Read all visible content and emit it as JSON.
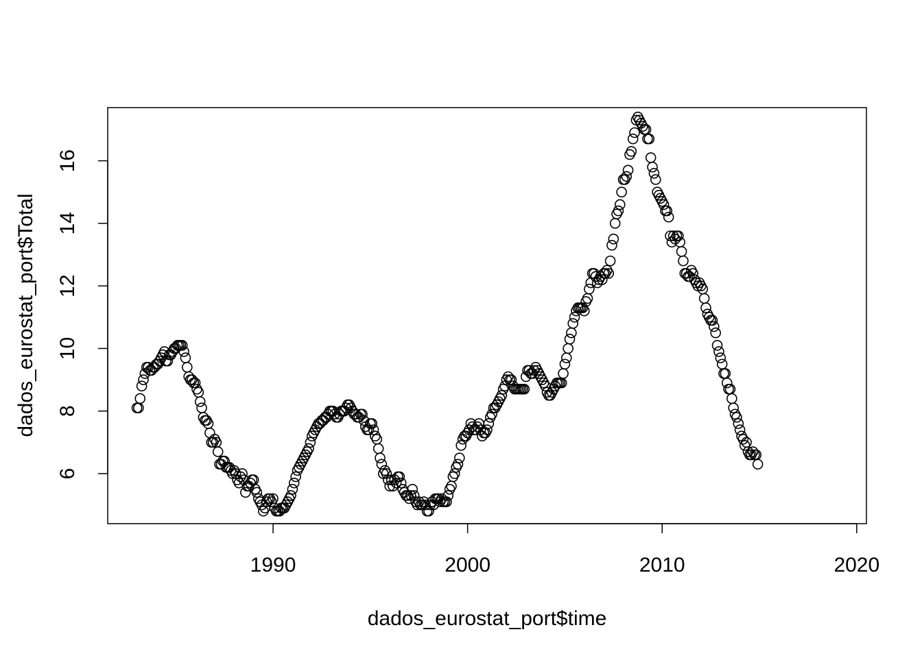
{
  "chart_data": {
    "type": "scatter",
    "title": "",
    "xlabel": "dados_eurostat_port$time",
    "ylabel": "dados_eurostat_port$Total",
    "xlim": [
      1981.5,
      2020.5
    ],
    "ylim": [
      4.4,
      17.7
    ],
    "x_ticks": [
      1990,
      2000,
      2010,
      2020
    ],
    "x_tick_labels": [
      "1990",
      "2000",
      "2010",
      "2020"
    ],
    "y_ticks": [
      6,
      8,
      10,
      12,
      14,
      16
    ],
    "y_tick_labels": [
      "6",
      "8",
      "10",
      "12",
      "14",
      "16"
    ],
    "grid": false,
    "legend": "none",
    "point_style": "open-circle",
    "series": [
      {
        "x_start": 1983.0,
        "x_step": 0.08333,
        "values": [
          8.1,
          8.1,
          8.4,
          8.8,
          9.0,
          9.2,
          9.4,
          9.4,
          9.3,
          9.3,
          9.4,
          9.4,
          9.5,
          9.5,
          9.6,
          9.7,
          9.8,
          9.9,
          9.6,
          9.6,
          9.8,
          9.8,
          9.9,
          10.0,
          10.0,
          10.1,
          10.1,
          10.1,
          10.1,
          9.9,
          9.7,
          9.4,
          9.1,
          9.0,
          9.0,
          8.9,
          8.9,
          8.7,
          8.6,
          8.3,
          8.1,
          7.8,
          7.7,
          7.7,
          7.6,
          7.3,
          7.0,
          7.0,
          7.1,
          7.0,
          6.7,
          6.3,
          6.3,
          6.4,
          6.4,
          6.2,
          6.2,
          6.2,
          6.1,
          6.0,
          6.1,
          6.0,
          5.8,
          5.7,
          5.9,
          6.0,
          5.8,
          5.4,
          5.6,
          5.6,
          5.7,
          5.8,
          5.8,
          5.5,
          5.4,
          5.2,
          5.1,
          5.0,
          4.8,
          4.9,
          5.1,
          5.2,
          5.2,
          5.1,
          5.2,
          4.9,
          4.8,
          4.8,
          4.8,
          4.9,
          4.9,
          4.9,
          5.0,
          5.1,
          5.2,
          5.3,
          5.5,
          5.7,
          5.9,
          6.1,
          6.2,
          6.3,
          6.4,
          6.5,
          6.6,
          6.7,
          6.8,
          7.0,
          7.2,
          7.3,
          7.4,
          7.5,
          7.6,
          7.6,
          7.7,
          7.7,
          7.8,
          7.8,
          7.9,
          8.0,
          8.0,
          8.0,
          7.9,
          7.8,
          7.8,
          7.9,
          8.0,
          8.0,
          8.0,
          8.1,
          8.2,
          8.2,
          8.1,
          8.0,
          7.9,
          7.9,
          7.8,
          7.8,
          7.9,
          7.9,
          7.7,
          7.5,
          7.4,
          7.4,
          7.6,
          7.6,
          7.4,
          7.2,
          7.1,
          6.8,
          6.5,
          6.3,
          6.0,
          6.1,
          6.0,
          5.8,
          5.6,
          5.8,
          5.6,
          5.8,
          5.7,
          5.9,
          5.9,
          5.7,
          5.5,
          5.4,
          5.3,
          5.3,
          5.2,
          5.3,
          5.5,
          5.3,
          5.1,
          5.0,
          5.1,
          5.0,
          5.0,
          5.1,
          5.0,
          4.8,
          4.8,
          5.0,
          5.1,
          5.0,
          5.2,
          5.2,
          5.2,
          5.1,
          5.2,
          5.1,
          5.1,
          5.1,
          5.3,
          5.5,
          5.6,
          5.9,
          6.0,
          6.2,
          6.3,
          6.5,
          6.9,
          7.1,
          7.2,
          7.2,
          7.3,
          7.4,
          7.6,
          7.5,
          7.4,
          7.4,
          7.5,
          7.6,
          7.4,
          7.2,
          7.3,
          7.3,
          7.4,
          7.6,
          7.8,
          7.9,
          8.1,
          8.1,
          8.2,
          8.3,
          8.4,
          8.5,
          8.7,
          8.8,
          9.0,
          9.1,
          9.0,
          9.0,
          8.8,
          8.7,
          8.7,
          8.7,
          8.7,
          8.7,
          8.7,
          8.7,
          9.1,
          9.3,
          9.3,
          9.2,
          9.2,
          9.3,
          9.4,
          9.3,
          9.2,
          9.1,
          9.0,
          8.9,
          8.8,
          8.6,
          8.5,
          8.5,
          8.6,
          8.7,
          8.8,
          8.9,
          8.9,
          8.9,
          8.9,
          9.2,
          9.5,
          9.7,
          10.0,
          10.3,
          10.5,
          10.8,
          11.0,
          11.2,
          11.3,
          11.3,
          11.3,
          11.3,
          11.2,
          11.5,
          11.6,
          11.9,
          12.1,
          12.4,
          12.4,
          12.3,
          12.1,
          12.2,
          12.3,
          12.2,
          12.4,
          12.4,
          12.5,
          12.4,
          12.8,
          13.3,
          13.5,
          14.0,
          14.3,
          14.4,
          14.6,
          15.0,
          15.4,
          15.4,
          15.5,
          15.7,
          16.2,
          16.3,
          16.7,
          16.9,
          17.3,
          17.4,
          17.3,
          17.2,
          17.1,
          17.0,
          17.0,
          16.7,
          16.7,
          16.1,
          15.8,
          15.6,
          15.4,
          15.0,
          14.9,
          14.8,
          14.7,
          14.6,
          14.4,
          14.4,
          14.2,
          13.6,
          13.4,
          13.6,
          13.5,
          13.6,
          13.6,
          13.4,
          13.1,
          12.8,
          12.4,
          12.4,
          12.3,
          12.3,
          12.5,
          12.4,
          12.2,
          12.1,
          12.0,
          12.1,
          12.0,
          11.9,
          11.6,
          11.3,
          11.1,
          11.0,
          10.9,
          10.9,
          10.7,
          10.5,
          10.1,
          9.9,
          9.7,
          9.5,
          9.2,
          9.2,
          8.9,
          8.7,
          8.7,
          8.4,
          8.1,
          7.9,
          7.8,
          7.6,
          7.4,
          7.2,
          7.1,
          6.9,
          7.0,
          6.7,
          6.6,
          6.6,
          6.7,
          6.6,
          6.6,
          6.3
        ]
      }
    ]
  }
}
